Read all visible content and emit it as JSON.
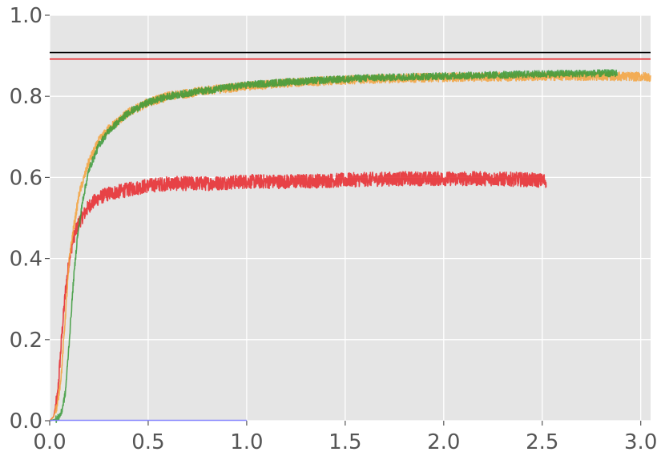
{
  "chart_data": {
    "type": "line",
    "title": "",
    "xlabel": "",
    "ylabel": "",
    "xlim": [
      0,
      3.05
    ],
    "ylim": [
      0,
      1.0
    ],
    "grid": true,
    "background": "#e5e5e5",
    "x_ticks": [
      "0.0",
      "0.5",
      "1.0",
      "1.5",
      "2.0",
      "2.5",
      "3.0"
    ],
    "y_ticks": [
      "0.0",
      "0.2",
      "0.4",
      "0.6",
      "0.8",
      "1.0"
    ],
    "hlines": [
      {
        "y": 0.908,
        "color": "#000000"
      },
      {
        "y": 0.892,
        "color": "#e8262a"
      }
    ],
    "series": [
      {
        "color": "#e8262a",
        "noise": 0.008,
        "x": [
          0,
          0.02,
          0.04,
          0.06,
          0.08,
          0.1,
          0.12,
          0.15,
          0.2,
          0.25,
          0.3,
          0.4,
          0.5,
          0.6,
          0.8,
          1.0,
          1.2,
          1.4,
          1.6,
          1.8,
          2.0,
          2.2,
          2.4,
          2.52
        ],
        "y": [
          0,
          0.01,
          0.06,
          0.2,
          0.32,
          0.4,
          0.45,
          0.49,
          0.53,
          0.55,
          0.56,
          0.57,
          0.58,
          0.585,
          0.585,
          0.59,
          0.59,
          0.592,
          0.595,
          0.597,
          0.597,
          0.597,
          0.595,
          0.592
        ]
      },
      {
        "color": "#f5a23c",
        "noise": 0.005,
        "x": [
          0,
          0.02,
          0.04,
          0.06,
          0.08,
          0.1,
          0.12,
          0.15,
          0.2,
          0.25,
          0.3,
          0.4,
          0.5,
          0.6,
          0.8,
          1.0,
          1.2,
          1.4,
          1.6,
          1.8,
          2.0,
          2.2,
          2.4,
          2.6,
          2.8,
          3.05
        ],
        "y": [
          0,
          0.01,
          0.04,
          0.12,
          0.26,
          0.4,
          0.47,
          0.56,
          0.64,
          0.69,
          0.72,
          0.76,
          0.785,
          0.8,
          0.815,
          0.825,
          0.833,
          0.838,
          0.842,
          0.845,
          0.847,
          0.848,
          0.849,
          0.85,
          0.85,
          0.848
        ]
      },
      {
        "color": "#3a9a3a",
        "noise": 0.004,
        "x": [
          0,
          0.04,
          0.06,
          0.08,
          0.1,
          0.12,
          0.14,
          0.17,
          0.2,
          0.25,
          0.3,
          0.4,
          0.5,
          0.6,
          0.8,
          1.0,
          1.2,
          1.4,
          1.6,
          1.8,
          2.0,
          2.2,
          2.4,
          2.6,
          2.88
        ],
        "y": [
          0,
          0.005,
          0.02,
          0.07,
          0.2,
          0.34,
          0.45,
          0.55,
          0.62,
          0.68,
          0.715,
          0.76,
          0.785,
          0.8,
          0.815,
          0.828,
          0.835,
          0.84,
          0.845,
          0.848,
          0.85,
          0.852,
          0.854,
          0.856,
          0.857
        ]
      },
      {
        "color": "#7b7bff",
        "noise": 0,
        "x": [
          0,
          1.0
        ],
        "y": [
          0.001,
          0.001
        ]
      }
    ]
  }
}
